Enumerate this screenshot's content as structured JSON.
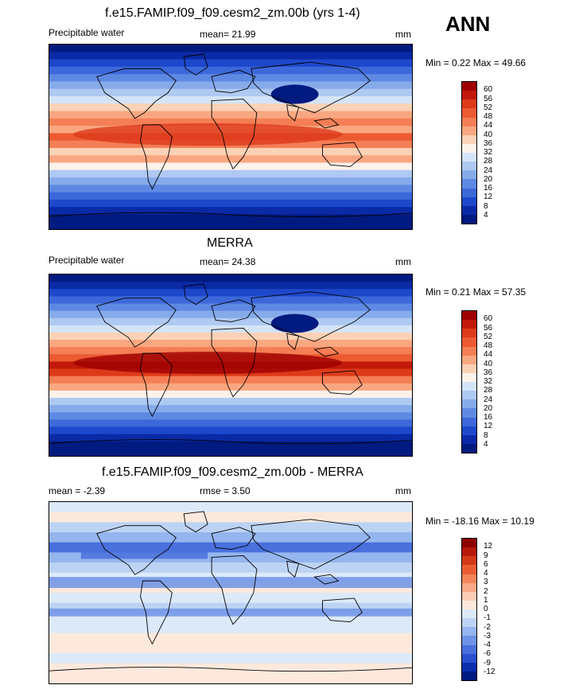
{
  "season": "ANN",
  "panels": [
    {
      "title": "f.e15.FAMIP.f09_f09.cesm2_zm.00b (yrs 1-4)",
      "left_label": "Precipitable water",
      "stat_label": "mean=  21.99",
      "units": "mm",
      "minmax": "Min =   0.22 Max =  49.66",
      "levels": [
        "60",
        "56",
        "52",
        "48",
        "44",
        "40",
        "36",
        "32",
        "28",
        "24",
        "20",
        "16",
        "12",
        "8",
        "4"
      ],
      "map_type": "field_model"
    },
    {
      "title": "MERRA",
      "left_label": "Precipitable water",
      "stat_label": "mean=  24.38",
      "units": "mm",
      "minmax": "Min =   0.21 Max =  57.35",
      "levels": [
        "60",
        "56",
        "52",
        "48",
        "44",
        "40",
        "36",
        "32",
        "28",
        "24",
        "20",
        "16",
        "12",
        "8",
        "4"
      ],
      "map_type": "field_obs"
    },
    {
      "title": "f.e15.FAMIP.f09_f09.cesm2_zm.00b - MERRA",
      "left_label": "mean =  -2.39",
      "stat_label": "rmse =   3.50",
      "units": "mm",
      "minmax": "Min = -18.16 Max =  10.19",
      "levels": [
        "12",
        "9",
        "6",
        "4",
        "3",
        "2",
        "1",
        "0",
        "-1",
        "-2",
        "-3",
        "-4",
        "-6",
        "-9",
        "-12"
      ],
      "map_type": "diff"
    }
  ],
  "colors": {
    "field_scale": [
      "#9e0000",
      "#c2190b",
      "#dd3a1a",
      "#ec5a32",
      "#f47e55",
      "#f9a781",
      "#fbd2b6",
      "#fdf2ea",
      "#d4e4f8",
      "#aec9f2",
      "#86abeb",
      "#5e89e3",
      "#3c68da",
      "#1d48cb",
      "#0a2aa6",
      "#001a80"
    ],
    "diff_scale": [
      "#8f0000",
      "#b51a0b",
      "#d53a18",
      "#ea5d31",
      "#f58559",
      "#f9a986",
      "#fcccb4",
      "#fde9dc",
      "#dce9f9",
      "#bcd3f4",
      "#95b5ee",
      "#6e93e6",
      "#4a70dd",
      "#2850cf",
      "#0c2fae",
      "#001a80"
    ],
    "land_outline": "#000000"
  }
}
